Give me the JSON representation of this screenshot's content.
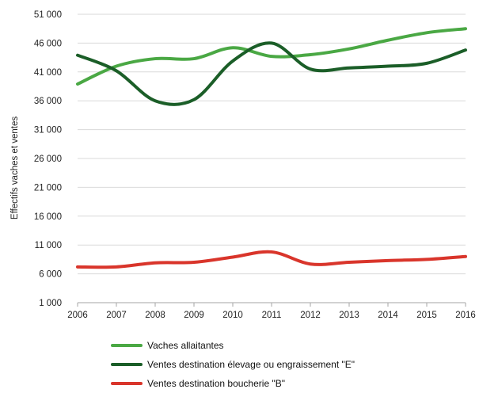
{
  "chart_data": {
    "type": "line",
    "ylabel": "Effectifs vaches et ventes",
    "xlabel": "",
    "x": [
      "2006",
      "2007",
      "2008",
      "2009",
      "2010",
      "2011",
      "2012",
      "2013",
      "2014",
      "2015",
      "2016"
    ],
    "ylim": [
      1000,
      51000
    ],
    "yticks": [
      1000,
      6000,
      11000,
      16000,
      21000,
      26000,
      31000,
      36000,
      41000,
      46000,
      51000
    ],
    "ytick_labels": [
      "1 000",
      "6 000",
      "11 000",
      "16 000",
      "21 000",
      "26 000",
      "31 000",
      "36 000",
      "41 000",
      "46 000",
      "51 000"
    ],
    "grid": "horizontal",
    "legend_position": "bottom",
    "series": [
      {
        "name": "Vaches allaitantes",
        "color": "#4aa844",
        "values": [
          38900,
          42000,
          43300,
          43300,
          45200,
          43700,
          44000,
          45000,
          46500,
          47800,
          48500
        ]
      },
      {
        "name": "Ventes destination élevage ou engraissement \"E\"",
        "color": "#1b5e28",
        "values": [
          43900,
          41200,
          36000,
          36200,
          42900,
          46000,
          41500,
          41700,
          42000,
          42500,
          44800
        ]
      },
      {
        "name": "Ventes destination boucherie \"B\"",
        "color": "#d9352b",
        "values": [
          7200,
          7200,
          7900,
          8000,
          8900,
          9800,
          7700,
          8000,
          8300,
          8500,
          9000
        ]
      }
    ]
  }
}
